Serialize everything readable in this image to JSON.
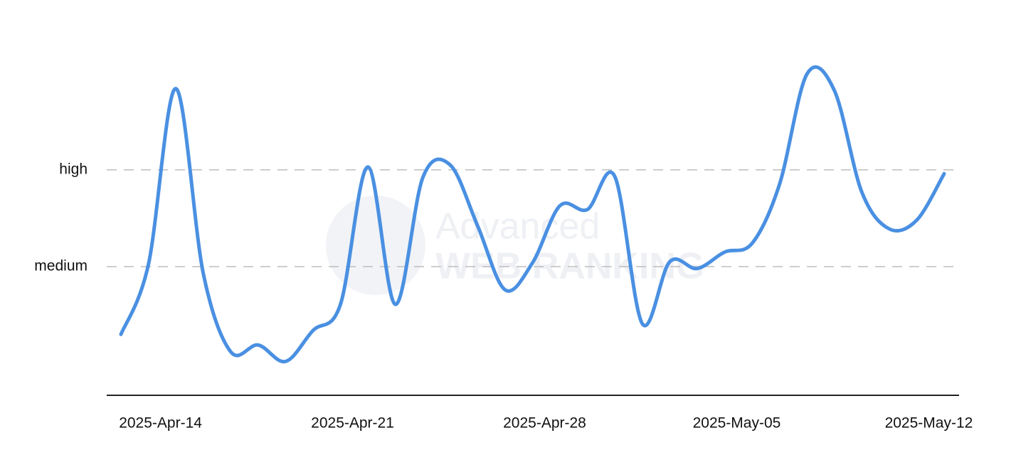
{
  "chart_data": {
    "type": "line",
    "watermark": [
      "Advanced",
      "WEB RANKING"
    ],
    "categories": [
      null,
      "2025-Apr-14",
      null,
      null,
      null,
      null,
      null,
      null,
      "2025-Apr-21",
      null,
      null,
      null,
      null,
      null,
      null,
      "2025-Apr-28",
      null,
      null,
      null,
      null,
      null,
      null,
      "2025-May-05",
      null,
      null,
      null,
      null,
      null,
      null,
      "2025-May-12",
      null
    ],
    "values": [
      0.3,
      1.02,
      2.84,
      0.93,
      0.12,
      0.19,
      0.02,
      0.34,
      0.61,
      2.03,
      0.61,
      1.92,
      2.05,
      1.42,
      0.76,
      1.04,
      1.63,
      1.59,
      1.93,
      0.41,
      1.05,
      0.98,
      1.15,
      1.24,
      1.85,
      2.99,
      2.82,
      1.77,
      1.39,
      1.48,
      1.96
    ],
    "color": "#4a90e2",
    "ylim": [
      -0.33,
      3.3
    ],
    "yticks": [
      {
        "value": 1,
        "label": "medium"
      },
      {
        "value": 2,
        "label": "high"
      }
    ],
    "grid": true
  }
}
